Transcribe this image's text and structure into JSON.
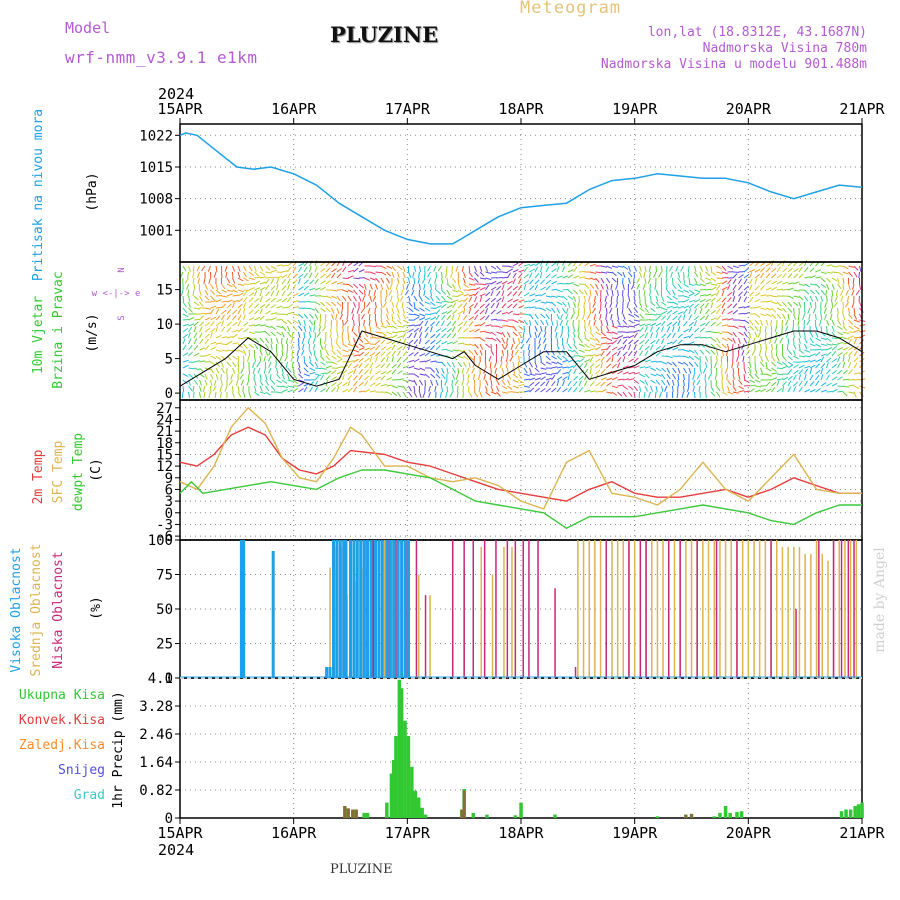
{
  "header": {
    "model_label": "Model",
    "model_name": "wrf-nmm_v3.9.1 e1km",
    "title": "PLUZINE",
    "subtitle": "Meteogram",
    "lonlat": "lon,lat (18.8312E, 43.1687N)",
    "altitude": "Nadmorska Visina 780m",
    "model_altitude": "Nadmorska Visina u modelu 901.488m",
    "footer": "PLUZINE",
    "watermark": "made by Angel"
  },
  "colors": {
    "pressure": "#1ea0e6",
    "temp2m": "#e63c3c",
    "sfc": "#dcb450",
    "dewpt": "#3cc83c",
    "high_cloud": "#1ea0e6",
    "mid_cloud": "#dcb450",
    "low_cloud": "#c8287a",
    "total_precip": "#32c832",
    "convective": "#e63c3c",
    "frozen": "#ff8c28",
    "snow": "#5050dc",
    "graupel": "#3cc8c8",
    "purple_text": "#b45ad2",
    "gold_text": "#e6c378"
  },
  "chart_data": [
    {
      "type": "line",
      "panel": "pressure",
      "ylabel": "Pritisak na nivou mora",
      "yunit": "(hPa)",
      "yticks": [
        1001,
        1008,
        1015,
        1022
      ],
      "ylim": [
        994,
        1024.5
      ],
      "x_unit": "days from 15APR 00UTC",
      "x": [
        0,
        0.05,
        0.15,
        0.3,
        0.5,
        0.65,
        0.8,
        1.0,
        1.2,
        1.4,
        1.6,
        1.8,
        2.0,
        2.2,
        2.4,
        2.5,
        2.6,
        2.8,
        3.0,
        3.2,
        3.4,
        3.6,
        3.8,
        4.0,
        4.2,
        4.4,
        4.6,
        4.8,
        5.0,
        5.2,
        5.4,
        5.6,
        5.8,
        6.0
      ],
      "values": [
        1022,
        1022.5,
        1022,
        1019,
        1015,
        1014.5,
        1015,
        1013.5,
        1011,
        1007,
        1004,
        1001,
        999,
        998,
        998,
        999.5,
        1001,
        1004,
        1006,
        1006.5,
        1007,
        1010,
        1012,
        1012.5,
        1013.5,
        1013,
        1012.5,
        1012.5,
        1011.5,
        1009.5,
        1008,
        1009.5,
        1011,
        1010.5
      ]
    },
    {
      "type": "line",
      "panel": "wind",
      "ylabel": "10m Vjetar",
      "ylabel2": "Brzina i Pravac",
      "yunit": "(m/s)",
      "yticks": [
        0,
        5,
        10,
        15
      ],
      "ylim": [
        -1,
        19
      ],
      "compass": "w <-|-> e",
      "compass_n": "N",
      "compass_s": "S",
      "x": [
        0,
        0.2,
        0.4,
        0.6,
        0.8,
        1.0,
        1.2,
        1.4,
        1.6,
        1.8,
        2.0,
        2.2,
        2.4,
        2.5,
        2.6,
        2.8,
        3.0,
        3.2,
        3.4,
        3.6,
        3.8,
        4.0,
        4.2,
        4.4,
        4.6,
        4.8,
        5.0,
        5.2,
        5.4,
        5.6,
        5.8,
        6.0
      ],
      "values": [
        1,
        3,
        5,
        8,
        6,
        2,
        1,
        2,
        9,
        8,
        7,
        6,
        5,
        6,
        4,
        2,
        4,
        6,
        6,
        2,
        3,
        4,
        6,
        7,
        7,
        6,
        7,
        8,
        9,
        9,
        8,
        6
      ]
    },
    {
      "type": "line",
      "panel": "temperature",
      "series_labels": [
        "2m Temp",
        "SFC Temp",
        "dewpt Temp"
      ],
      "yunit": "(C)",
      "yticks": [
        -6,
        -3,
        0,
        3,
        6,
        9,
        12,
        15,
        18,
        21,
        24,
        27
      ],
      "ylim": [
        -7,
        29
      ],
      "series": [
        {
          "name": "2m Temp",
          "x": [
            0,
            0.15,
            0.3,
            0.45,
            0.6,
            0.75,
            0.9,
            1.05,
            1.2,
            1.35,
            1.5,
            1.8,
            2.0,
            2.2,
            2.4,
            2.6,
            2.8,
            3.0,
            3.2,
            3.4,
            3.6,
            3.8,
            4.0,
            4.2,
            4.4,
            4.6,
            4.8,
            5.0,
            5.2,
            5.4,
            5.6,
            5.8,
            6.0
          ],
          "values": [
            13,
            12,
            15,
            20,
            22,
            20,
            14,
            11,
            10,
            12,
            16,
            15,
            13,
            12,
            10,
            8,
            6,
            5,
            4,
            3,
            6,
            8,
            5,
            4,
            4,
            5,
            6,
            4,
            6,
            9,
            7,
            5,
            5
          ]
        },
        {
          "name": "SFC Temp",
          "x": [
            0,
            0.15,
            0.3,
            0.45,
            0.6,
            0.75,
            0.9,
            1.05,
            1.2,
            1.35,
            1.5,
            1.6,
            1.8,
            2.0,
            2.2,
            2.4,
            2.6,
            2.8,
            3.0,
            3.2,
            3.4,
            3.6,
            3.8,
            4.0,
            4.2,
            4.4,
            4.6,
            4.8,
            5.0,
            5.2,
            5.4,
            5.6,
            5.8,
            6.0
          ],
          "values": [
            8,
            6,
            12,
            22,
            27,
            23,
            14,
            9,
            8,
            14,
            22,
            20,
            12,
            12,
            9,
            8,
            9,
            7,
            3,
            1,
            13,
            16,
            5,
            4,
            2,
            6,
            13,
            6,
            3,
            9,
            15,
            6,
            5,
            5
          ]
        },
        {
          "name": "dewpt Temp",
          "x": [
            0,
            0.1,
            0.2,
            0.4,
            0.6,
            0.8,
            1.0,
            1.2,
            1.4,
            1.6,
            1.8,
            2.0,
            2.2,
            2.4,
            2.6,
            2.8,
            3.0,
            3.2,
            3.4,
            3.6,
            3.8,
            4.0,
            4.2,
            4.4,
            4.6,
            4.8,
            5.0,
            5.2,
            5.4,
            5.6,
            5.8,
            6.0
          ],
          "values": [
            5,
            8,
            5,
            6,
            7,
            8,
            7,
            6,
            9,
            11,
            11,
            10,
            9,
            6,
            3,
            2,
            1,
            0,
            -4,
            -1,
            -1,
            -1,
            0,
            1,
            2,
            1,
            0,
            -2,
            -3,
            0,
            2,
            2
          ]
        }
      ]
    },
    {
      "type": "bar",
      "panel": "clouds",
      "series_labels": [
        "Visoka Oblacnost",
        "Srednja Oblacnost",
        "Niska Oblacnost"
      ],
      "yunit": "(%)",
      "yticks": [
        0,
        25,
        50,
        75,
        100
      ],
      "ylim": [
        0,
        100
      ],
      "high": [
        [
          0.54,
          100
        ],
        [
          0.56,
          100
        ],
        [
          0.82,
          92
        ],
        [
          1.29,
          8
        ],
        [
          1.32,
          8
        ],
        [
          1.35,
          100
        ],
        [
          1.38,
          100
        ],
        [
          1.41,
          100
        ],
        [
          1.44,
          100
        ],
        [
          1.46,
          100
        ],
        [
          1.5,
          100
        ],
        [
          1.53,
          100
        ],
        [
          1.56,
          100
        ],
        [
          1.59,
          100
        ],
        [
          1.62,
          100
        ],
        [
          1.65,
          100
        ],
        [
          1.68,
          100
        ],
        [
          1.72,
          100
        ],
        [
          1.75,
          100
        ],
        [
          1.78,
          100
        ],
        [
          1.82,
          100
        ],
        [
          1.85,
          100
        ],
        [
          1.88,
          100
        ],
        [
          1.92,
          100
        ],
        [
          1.95,
          100
        ],
        [
          1.98,
          100
        ],
        [
          2.01,
          100
        ]
      ],
      "mid": [
        [
          1.32,
          80
        ],
        [
          1.36,
          95
        ],
        [
          1.42,
          95
        ],
        [
          1.47,
          60
        ],
        [
          1.55,
          70
        ],
        [
          1.61,
          80
        ],
        [
          1.68,
          100
        ],
        [
          1.75,
          100
        ],
        [
          1.8,
          100
        ],
        [
          1.86,
          100
        ],
        [
          1.92,
          100
        ],
        [
          1.98,
          100
        ],
        [
          2.1,
          75
        ],
        [
          2.2,
          60
        ],
        [
          2.5,
          80
        ],
        [
          2.65,
          95
        ],
        [
          2.75,
          75
        ],
        [
          2.85,
          95
        ],
        [
          2.92,
          95
        ],
        [
          3.5,
          100
        ],
        [
          3.55,
          100
        ],
        [
          3.6,
          100
        ],
        [
          3.65,
          100
        ],
        [
          3.7,
          100
        ],
        [
          3.75,
          100
        ],
        [
          3.8,
          100
        ],
        [
          3.85,
          100
        ],
        [
          3.9,
          100
        ],
        [
          3.95,
          100
        ],
        [
          4.0,
          100
        ],
        [
          4.05,
          100
        ],
        [
          4.1,
          100
        ],
        [
          4.15,
          100
        ],
        [
          4.2,
          100
        ],
        [
          4.25,
          100
        ],
        [
          4.3,
          100
        ],
        [
          4.35,
          100
        ],
        [
          4.4,
          100
        ],
        [
          4.45,
          100
        ],
        [
          4.5,
          100
        ],
        [
          4.55,
          100
        ],
        [
          4.6,
          100
        ],
        [
          4.65,
          100
        ],
        [
          4.7,
          100
        ],
        [
          4.75,
          100
        ],
        [
          4.8,
          100
        ],
        [
          4.85,
          100
        ],
        [
          4.9,
          100
        ],
        [
          4.95,
          100
        ],
        [
          5.0,
          100
        ],
        [
          5.05,
          100
        ],
        [
          5.1,
          100
        ],
        [
          5.15,
          100
        ],
        [
          5.2,
          100
        ],
        [
          5.25,
          100
        ],
        [
          5.3,
          95
        ],
        [
          5.35,
          95
        ],
        [
          5.4,
          95
        ],
        [
          5.45,
          95
        ],
        [
          5.5,
          90
        ],
        [
          5.55,
          90
        ],
        [
          5.6,
          100
        ],
        [
          5.65,
          90
        ],
        [
          5.7,
          85
        ],
        [
          5.75,
          100
        ],
        [
          5.8,
          100
        ],
        [
          5.85,
          100
        ],
        [
          5.9,
          100
        ],
        [
          5.95,
          100
        ]
      ],
      "low": [
        [
          1.64,
          100
        ],
        [
          1.7,
          100
        ],
        [
          1.78,
          100
        ],
        [
          1.84,
          100
        ],
        [
          1.9,
          100
        ],
        [
          2.0,
          100
        ],
        [
          2.08,
          100
        ],
        [
          2.16,
          60
        ],
        [
          2.4,
          100
        ],
        [
          2.5,
          100
        ],
        [
          2.58,
          100
        ],
        [
          2.68,
          100
        ],
        [
          2.78,
          100
        ],
        [
          2.88,
          100
        ],
        [
          2.95,
          100
        ],
        [
          3.02,
          100
        ],
        [
          3.07,
          100
        ],
        [
          3.15,
          100
        ],
        [
          3.3,
          65
        ],
        [
          3.48,
          8
        ],
        [
          3.75,
          100
        ],
        [
          3.95,
          100
        ],
        [
          4.05,
          100
        ],
        [
          4.1,
          100
        ],
        [
          4.3,
          100
        ],
        [
          4.4,
          100
        ],
        [
          4.55,
          100
        ],
        [
          4.72,
          100
        ],
        [
          4.9,
          100
        ],
        [
          5.2,
          100
        ],
        [
          5.42,
          50
        ],
        [
          5.62,
          100
        ],
        [
          5.75,
          100
        ],
        [
          5.82,
          100
        ],
        [
          5.88,
          100
        ],
        [
          5.93,
          100
        ]
      ]
    },
    {
      "type": "bar",
      "panel": "precip",
      "series_labels": [
        "Ukupna Kisa",
        "Konvek.Kisa",
        "Zaledj.Kisa",
        "Snijeg",
        "Grad"
      ],
      "yunit": "1hr Precip (mm)",
      "yticks": [
        0,
        0.82,
        1.64,
        2.46,
        3.28,
        4.1
      ],
      "ylim": [
        0,
        4.1
      ],
      "total": [
        [
          1.45,
          0.35
        ],
        [
          1.48,
          0.28
        ],
        [
          1.52,
          0.25
        ],
        [
          1.55,
          0.25
        ],
        [
          1.62,
          0.15
        ],
        [
          1.65,
          0.15
        ],
        [
          1.82,
          0.45
        ],
        [
          1.86,
          1.3
        ],
        [
          1.88,
          1.7
        ],
        [
          1.9,
          2.4
        ],
        [
          1.93,
          4.05
        ],
        [
          1.95,
          3.8
        ],
        [
          1.98,
          2.85
        ],
        [
          2.01,
          2.4
        ],
        [
          2.04,
          1.5
        ],
        [
          2.07,
          0.8
        ],
        [
          2.1,
          0.6
        ],
        [
          2.13,
          0.3
        ],
        [
          2.16,
          0.1
        ],
        [
          2.48,
          0.25
        ],
        [
          2.5,
          0.85
        ],
        [
          2.58,
          0.15
        ],
        [
          2.7,
          0.1
        ],
        [
          2.95,
          0.08
        ],
        [
          3.0,
          0.45
        ],
        [
          3.3,
          0.1
        ],
        [
          4.2,
          0.05
        ],
        [
          4.45,
          0.1
        ],
        [
          4.5,
          0.12
        ],
        [
          4.7,
          0.05
        ],
        [
          4.75,
          0.15
        ],
        [
          4.8,
          0.35
        ],
        [
          4.84,
          0.15
        ],
        [
          4.9,
          0.18
        ],
        [
          4.94,
          0.2
        ],
        [
          5.82,
          0.2
        ],
        [
          5.86,
          0.25
        ],
        [
          5.9,
          0.25
        ],
        [
          5.94,
          0.35
        ],
        [
          5.97,
          0.4
        ],
        [
          6.0,
          0.45
        ]
      ],
      "convective": [
        [
          1.45,
          0.35
        ],
        [
          1.48,
          0.28
        ],
        [
          1.52,
          0.25
        ],
        [
          1.55,
          0.25
        ],
        [
          2.48,
          0.25
        ],
        [
          2.5,
          0.8
        ],
        [
          4.45,
          0.1
        ],
        [
          4.5,
          0.12
        ]
      ]
    }
  ],
  "x_axis": {
    "top_year": "2024",
    "bottom_year": "2024",
    "labels": [
      "15APR",
      "16APR",
      "17APR",
      "18APR",
      "19APR",
      "20APR",
      "21APR"
    ]
  }
}
